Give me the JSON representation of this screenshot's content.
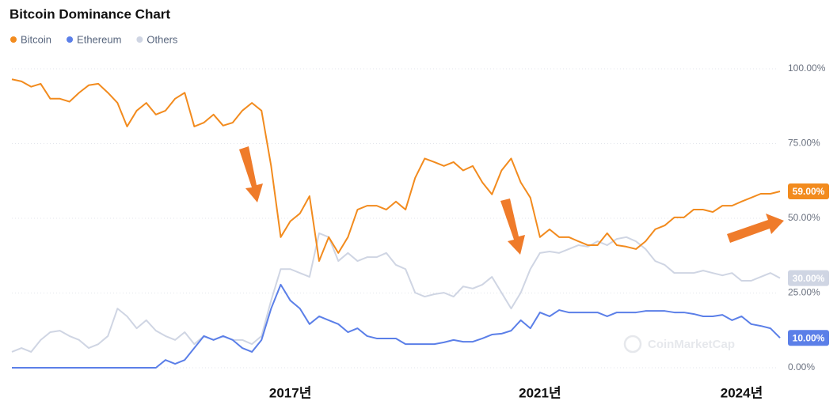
{
  "chart_data": {
    "type": "line",
    "title": "Bitcoin Dominance Chart",
    "watermark": "CoinMarketCap",
    "categories": [
      null,
      null,
      null,
      null,
      null,
      null,
      null,
      null,
      null,
      null,
      null,
      null,
      null,
      null,
      null,
      null,
      null,
      null,
      null,
      null,
      null,
      null,
      null,
      null,
      null,
      null,
      null,
      null,
      null,
      "2017년",
      null,
      null,
      null,
      null,
      null,
      null,
      null,
      null,
      null,
      null,
      null,
      null,
      null,
      null,
      null,
      null,
      null,
      null,
      null,
      null,
      null,
      null,
      null,
      null,
      null,
      "2021년",
      null,
      null,
      null,
      null,
      null,
      null,
      null,
      null,
      null,
      null,
      null,
      null,
      null,
      null,
      null,
      null,
      null,
      null,
      null,
      null,
      "2024년",
      null,
      null,
      null,
      null
    ],
    "series": [
      {
        "name": "Bitcoin",
        "color": "#f28b1e",
        "end_label": "59.00%",
        "values": [
          96.5,
          95.8,
          94,
          95,
          90,
          90,
          89,
          92,
          94.5,
          95,
          92,
          88.6,
          80.7,
          86,
          88.6,
          84.7,
          86,
          90,
          92,
          80.7,
          82,
          84.7,
          81,
          82,
          86,
          88.6,
          86,
          67.5,
          43.7,
          49,
          51.6,
          57.4,
          35.7,
          43.7,
          38.4,
          43.7,
          52.9,
          54.2,
          54.2,
          52.9,
          55.6,
          52.9,
          63.5,
          70,
          68.8,
          67.5,
          68.8,
          66,
          67.5,
          62,
          58,
          66,
          70,
          62,
          56.9,
          43.7,
          46.3,
          43.7,
          43.7,
          42.3,
          41,
          41,
          45,
          41,
          40.5,
          39.7,
          42.3,
          46.3,
          47.6,
          50.3,
          50.3,
          52.9,
          52.9,
          52.1,
          54.2,
          54.2,
          55.6,
          56.9,
          58.2,
          58.2,
          59
        ]
      },
      {
        "name": "Ethereum",
        "color": "#5b7fe8",
        "end_label": "10.00%",
        "values": [
          0,
          0,
          0,
          0,
          0,
          0,
          0,
          0,
          0,
          0,
          0,
          0,
          0,
          0,
          0,
          0,
          2.6,
          1.3,
          2.6,
          6.6,
          10.6,
          9.3,
          10.6,
          9.3,
          6.6,
          5.3,
          9.3,
          19.8,
          27.8,
          22.5,
          19.8,
          14.6,
          17.2,
          15.9,
          14.6,
          11.9,
          13.2,
          10.6,
          9.8,
          9.8,
          9.8,
          7.9,
          7.9,
          7.9,
          7.9,
          8.5,
          9.3,
          8.7,
          8.7,
          9.8,
          11.1,
          11.4,
          12.4,
          15.9,
          13.2,
          18.5,
          17.2,
          19.3,
          18.5,
          18.5,
          18.5,
          18.5,
          17.2,
          18.5,
          18.5,
          18.5,
          19,
          19,
          19,
          18.5,
          18.5,
          18,
          17.2,
          17.2,
          17.7,
          15.9,
          17.2,
          14.6,
          14,
          13.2,
          10
        ]
      },
      {
        "name": "Others",
        "color": "#cfd5e3",
        "end_label": "30.00%",
        "values": [
          5.3,
          6.6,
          5.3,
          9.3,
          11.9,
          12.4,
          10.6,
          9.3,
          6.6,
          7.9,
          10.6,
          19.8,
          17.2,
          13.2,
          15.9,
          12.4,
          10.6,
          9.3,
          11.9,
          7.9,
          10.6,
          9.3,
          10.6,
          9.3,
          9.3,
          7.9,
          10.6,
          22.5,
          33,
          33,
          31.7,
          30.4,
          45,
          43.7,
          35.7,
          38.4,
          35.7,
          37,
          37,
          38.4,
          34.4,
          33,
          25.1,
          23.8,
          24.6,
          25.1,
          23.8,
          27.2,
          26.5,
          27.8,
          30.4,
          25.1,
          19.8,
          25.1,
          33,
          38.4,
          38.9,
          38.4,
          39.7,
          41,
          40.5,
          42.3,
          41,
          43.1,
          43.7,
          42.3,
          39.7,
          35.7,
          34.4,
          31.7,
          31.7,
          31.7,
          32.5,
          31.7,
          30.9,
          31.7,
          29.1,
          29.1,
          30.4,
          31.7,
          30
        ]
      }
    ],
    "ylim": [
      0,
      100
    ],
    "yticks": [
      {
        "value": 0,
        "label": "0.00%"
      },
      {
        "value": 25,
        "label": "25.00%"
      },
      {
        "value": 50,
        "label": "50.00%"
      },
      {
        "value": 75,
        "label": "75.00%"
      },
      {
        "value": 100,
        "label": "100.00%"
      }
    ],
    "grid": true,
    "legend": "top-left"
  }
}
